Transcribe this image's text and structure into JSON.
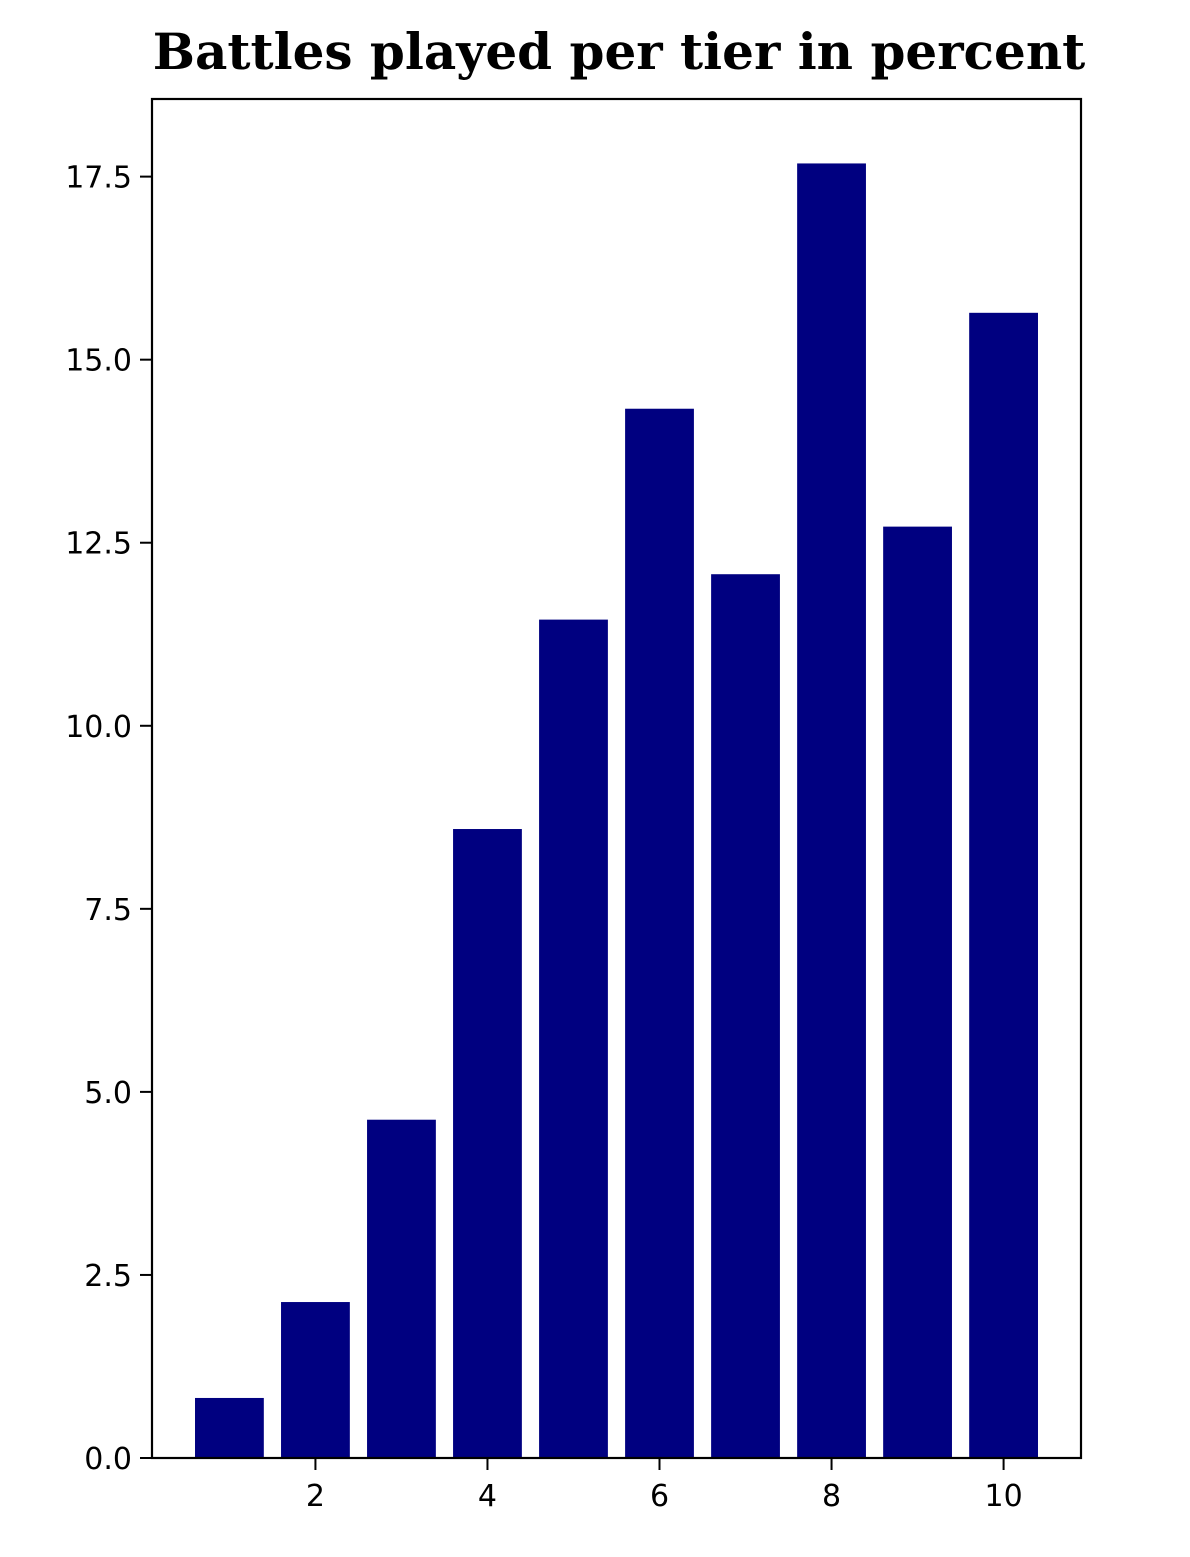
{
  "chart_data": {
    "type": "bar",
    "title": "Battles played per tier in percent",
    "xlabel": "",
    "ylabel": "",
    "x": [
      1,
      2,
      3,
      4,
      5,
      6,
      7,
      8,
      9,
      10
    ],
    "values": [
      0.82,
      2.13,
      4.62,
      8.59,
      11.45,
      14.33,
      12.07,
      17.68,
      12.72,
      15.64
    ],
    "bar_color": "#000080",
    "xlim": [
      0.1,
      10.9
    ],
    "ylim": [
      0,
      18.56
    ],
    "xticks": [
      2,
      4,
      6,
      8,
      10
    ],
    "xtick_labels": [
      "2",
      "4",
      "6",
      "8",
      "10"
    ],
    "yticks": [
      0,
      2.5,
      5,
      7.5,
      10,
      12.5,
      15,
      17.5
    ],
    "ytick_labels": [
      "0.0",
      "2.5",
      "5.0",
      "7.5",
      "10.0",
      "12.5",
      "15.0",
      "17.5"
    ],
    "grid": false,
    "legend": "none"
  }
}
